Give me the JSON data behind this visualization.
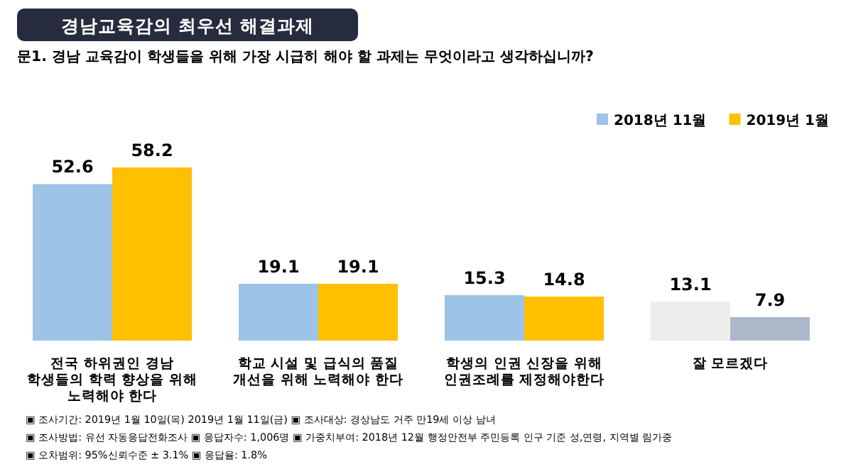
{
  "chart_data": {
    "type": "bar",
    "title": "경남교육감의 최우선 해결과제",
    "subtitle": "문1. 경남 교육감이 학생들을 위해 가장 시급히 해야 할 과제는 무엇이라고 생각하십니까?",
    "categories": [
      "전국 하위권인 경남 학생들의 학력 향상을 위해 노력해야 한다",
      "학교 시설 및 급식의 품질 개선을 위해 노력해야 한다",
      "학생의 인권 신장을 위해 인권조례를 제정해야한다",
      "잘 모르겠다"
    ],
    "series": [
      {
        "name": "2018년 11월",
        "color": "#9dc3e6",
        "colors": [
          "#9dc3e6",
          "#9dc3e6",
          "#9dc3e6",
          "#ededed"
        ],
        "values": [
          52.6,
          19.1,
          15.3,
          13.1
        ]
      },
      {
        "name": "2019년 1월",
        "color": "#ffc000",
        "colors": [
          "#ffc000",
          "#ffc000",
          "#ffc000",
          "#adb9ca"
        ],
        "values": [
          58.2,
          19.1,
          14.8,
          7.9
        ]
      }
    ],
    "data_labels": true,
    "legend": "top right",
    "annotations": [
      "▣ 조사기간: 2019년 1월 10일(목) 2019년 1월 11일(금) ▣ 조사대상: 경상남도 거주 만19세 이상 남녀",
      "▣ 조사방법: 유선 자동응답전화조사 ▣ 응답자수: 1,006명 ▣ 가중치부여: 2018년 12월 행정안전부 주민등록 인구 기준 성,연령, 지역별 림가중",
      "▣ 오차범위: 95%신뢰수준 ± 3.1% ▣ 응답율: 1.8%"
    ]
  }
}
